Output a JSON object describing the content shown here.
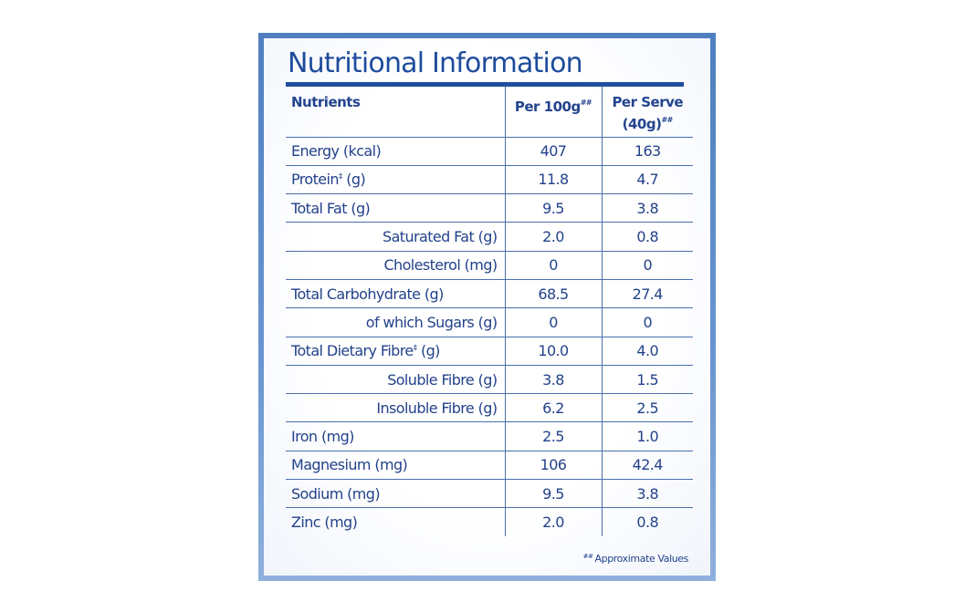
{
  "title": "Nutritional Information",
  "header": {
    "nutrients": "Nutrients",
    "per_100g": "Per 100g",
    "per_100g_mark": "##",
    "per_serve_line1": "Per Serve",
    "per_serve_line2": "(40g)",
    "per_serve_mark": "##"
  },
  "rows": [
    {
      "name": "Energy (kcal)",
      "per100": "407",
      "perServe": "163"
    },
    {
      "name": "Protein",
      "mark": "‡",
      "unit": " (g)",
      "per100": "11.8",
      "perServe": "4.7"
    },
    {
      "name": "Total Fat (g)",
      "per100": "9.5",
      "perServe": "3.8"
    },
    {
      "name": "Saturated Fat (g)",
      "per100": "2.0",
      "perServe": "0.8"
    },
    {
      "name": "Cholesterol (mg)",
      "per100": "0",
      "perServe": "0"
    },
    {
      "name": "Total Carbohydrate (g)",
      "per100": "68.5",
      "perServe": "27.4"
    },
    {
      "name": "of which Sugars (g)",
      "per100": "0",
      "perServe": "0"
    },
    {
      "name": "Total Dietary Fibre",
      "mark": "‡",
      "unit": " (g)",
      "per100": "10.0",
      "perServe": "4.0"
    },
    {
      "name": "Soluble Fibre (g)",
      "per100": "3.8",
      "perServe": "1.5"
    },
    {
      "name": "Insoluble Fibre (g)",
      "per100": "6.2",
      "perServe": "2.5"
    },
    {
      "name": "Iron (mg)",
      "per100": "2.5",
      "perServe": "1.0"
    },
    {
      "name": "Magnesium (mg)",
      "per100": "106",
      "perServe": "42.4"
    },
    {
      "name": "Sodium (mg)",
      "per100": "9.5",
      "perServe": "3.8"
    },
    {
      "name": "Zinc (mg)",
      "per100": "2.0",
      "perServe": "0.8"
    }
  ],
  "footnote": {
    "mark": "##",
    "text": "Approximate Values"
  },
  "colors": {
    "frame": "#4f7fc0",
    "text": "#23428a",
    "title": "#1e4c9c",
    "rule": "#4b6fae"
  }
}
